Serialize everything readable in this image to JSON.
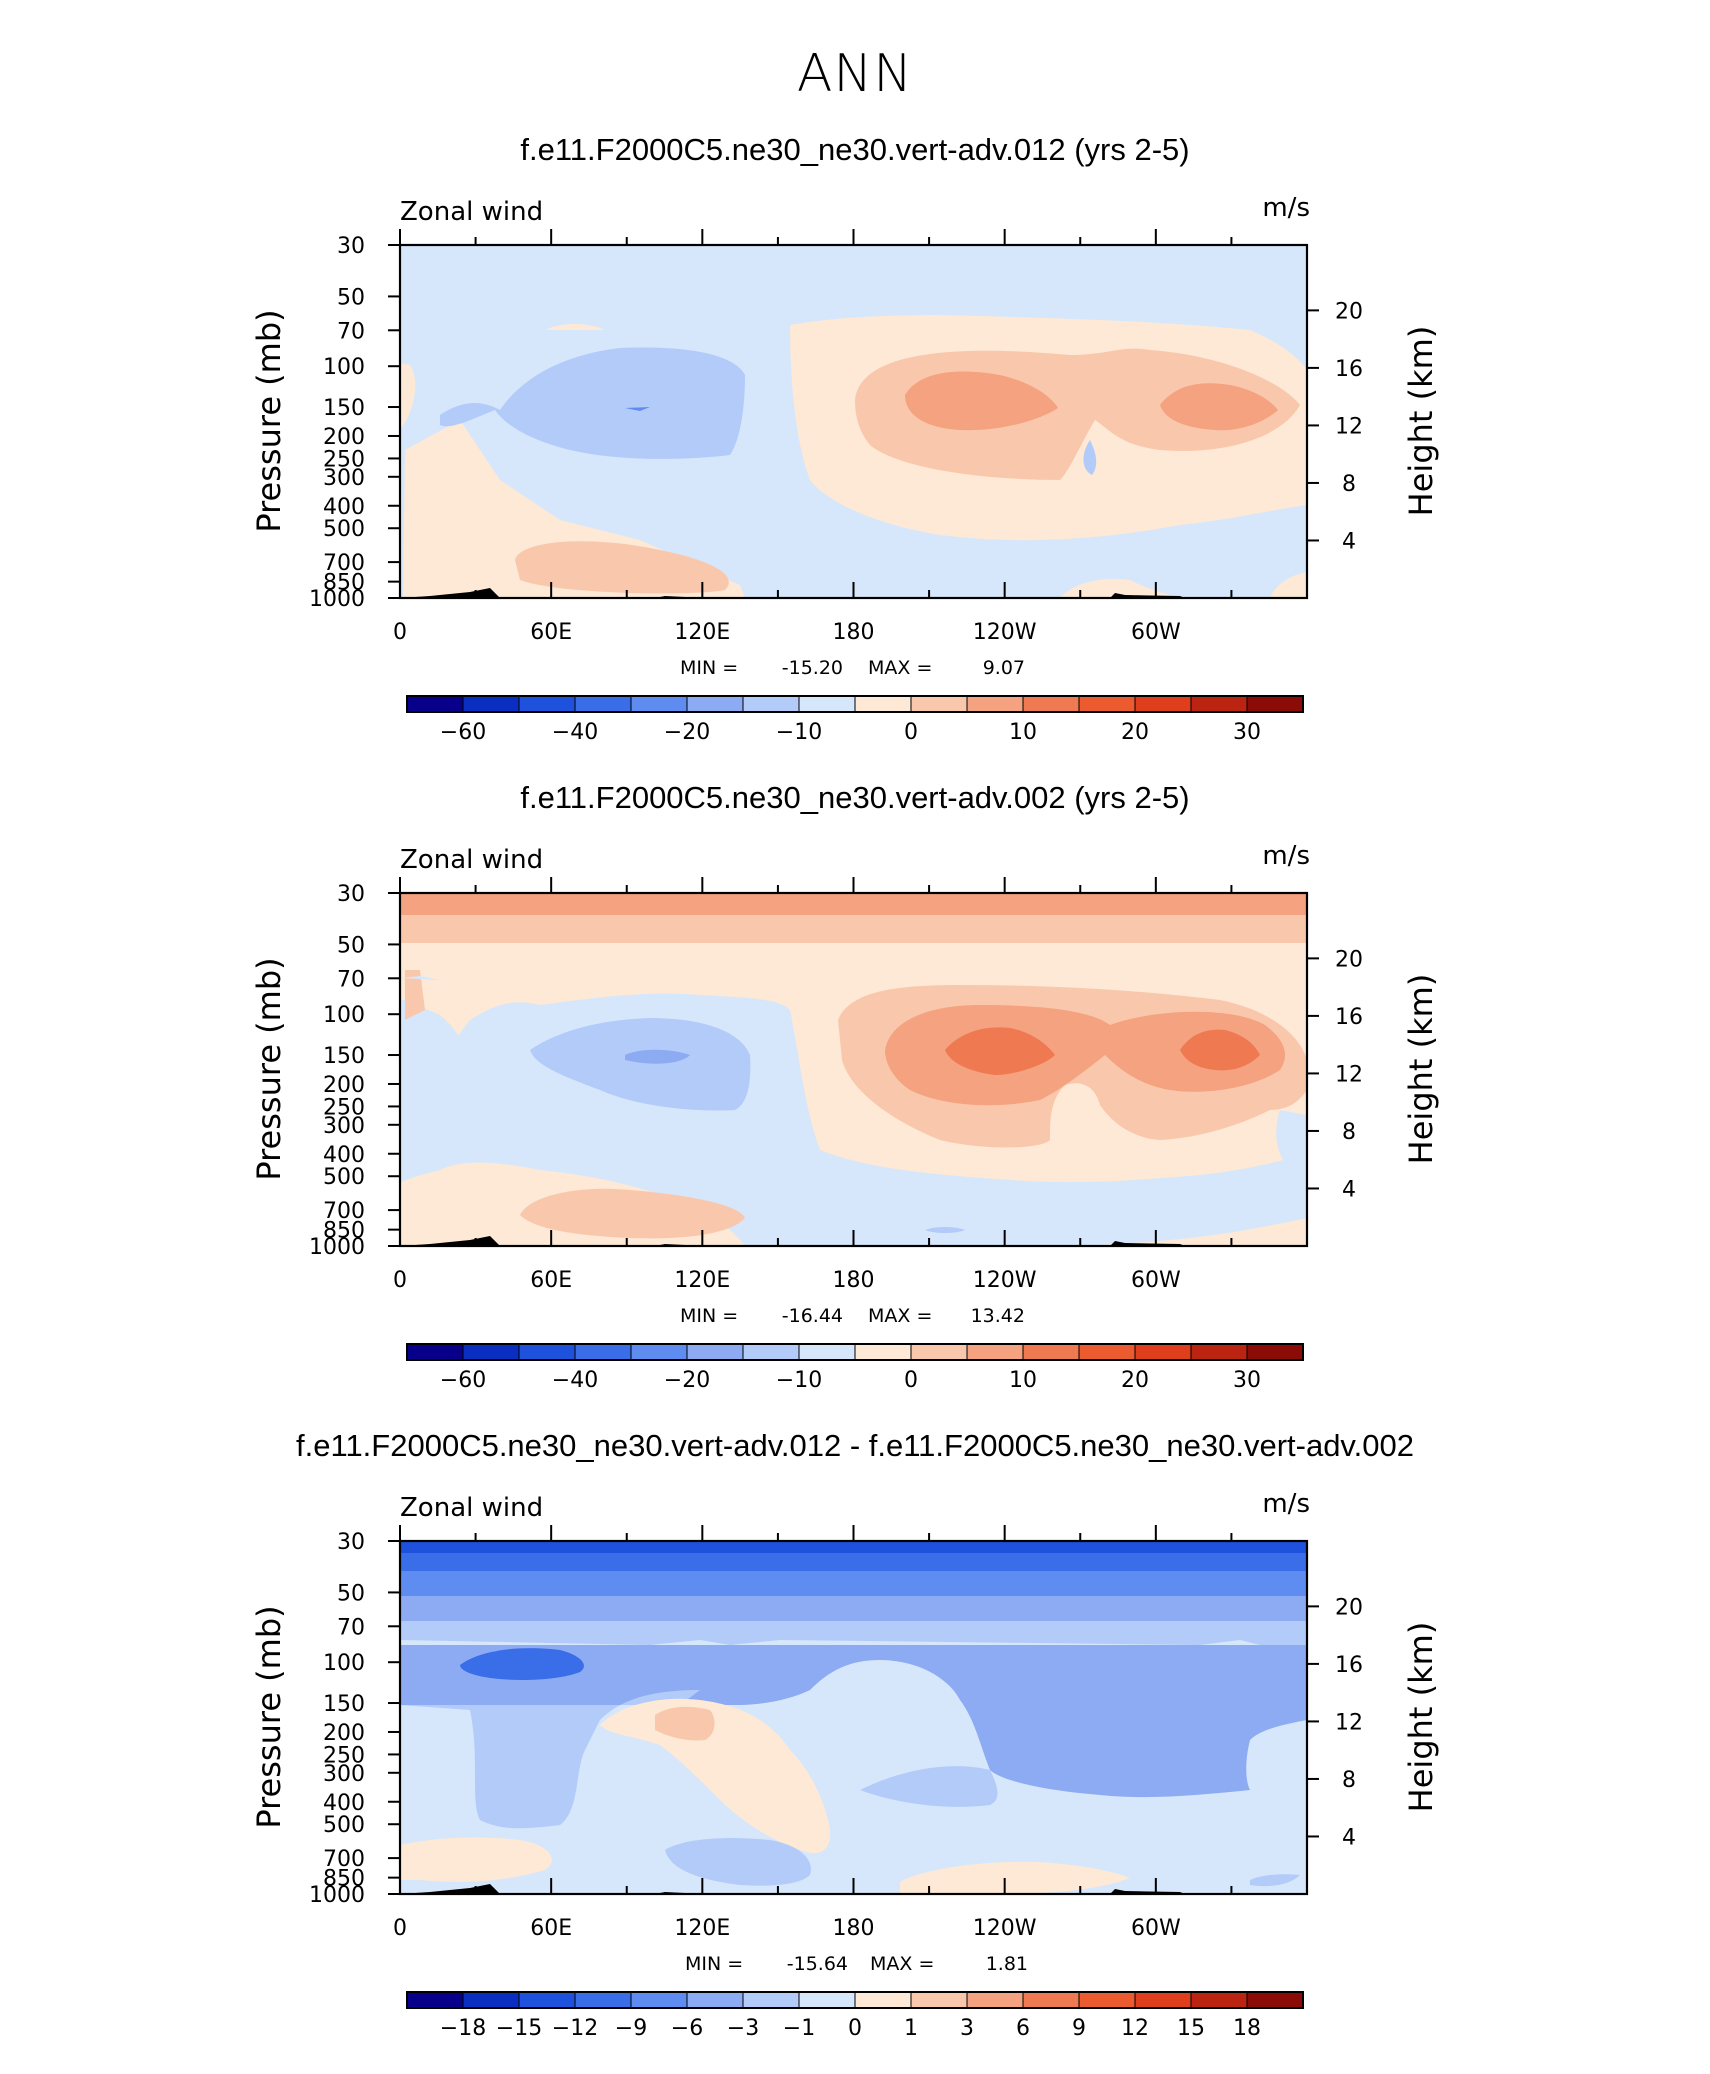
{
  "figure_title": "ANN",
  "chart_data": [
    {
      "type": "heatmap",
      "title": "f.e11.F2000C5.ne30_ne30.vert-adv.012 (yrs 2-5)",
      "variable": "Zonal wind",
      "units": "m/s",
      "ylabel": "Pressure (mb)",
      "y2label": "Height (km)",
      "x_ticks": [
        "0",
        "60E",
        "120E",
        "180",
        "120W",
        "60W"
      ],
      "y_ticks": [
        "30",
        "50",
        "70",
        "100",
        "150",
        "200",
        "250",
        "300",
        "400",
        "500",
        "700",
        "850",
        "1000"
      ],
      "y2_ticks": [
        "20",
        "16",
        "12",
        "8",
        "4"
      ],
      "stats": {
        "min_label": "MIN =",
        "min": "-15.20",
        "max_label": "MAX =",
        "max": "9.07"
      },
      "colorbar_labels": [
        "-60",
        "-40",
        "-20",
        "-10",
        "0",
        "10",
        "20",
        "30"
      ],
      "colorbar_colors": [
        "#08008a",
        "#0a2ec0",
        "#1e51dc",
        "#3a6ee8",
        "#5e8cf0",
        "#8dabf2",
        "#b3cbf9",
        "#d6e7fb",
        "#fde9d5",
        "#f9c8ac",
        "#f4a27f",
        "#ef7a52",
        "#ec5a2f",
        "#de3e1c",
        "#bb2410",
        "#8b0c06"
      ],
      "features": [
        {
          "name": "background",
          "level": "-5 to 0",
          "color": "#d6e7fb"
        },
        {
          "name": "blue-tropopause-core",
          "lon": 90,
          "pres": 150,
          "color": "#b3cbf9"
        },
        {
          "name": "eastern-pacific-jet",
          "lon": 200,
          "pres": 150,
          "color": "#f4a27f"
        },
        {
          "name": "atlantic-jet",
          "lon": 290,
          "pres": 150,
          "color": "#f4a27f"
        }
      ]
    },
    {
      "type": "heatmap",
      "title": "f.e11.F2000C5.ne30_ne30.vert-adv.002 (yrs 2-5)",
      "variable": "Zonal wind",
      "units": "m/s",
      "ylabel": "Pressure (mb)",
      "y2label": "Height (km)",
      "x_ticks": [
        "0",
        "60E",
        "120E",
        "180",
        "120W",
        "60W"
      ],
      "y_ticks": [
        "30",
        "50",
        "70",
        "100",
        "150",
        "200",
        "250",
        "300",
        "400",
        "500",
        "700",
        "850",
        "1000"
      ],
      "y2_ticks": [
        "20",
        "16",
        "12",
        "8",
        "4"
      ],
      "stats": {
        "min_label": "MIN =",
        "min": "-16.44",
        "max_label": "MAX =",
        "max": "13.42"
      },
      "colorbar_labels": [
        "-60",
        "-40",
        "-20",
        "-10",
        "0",
        "10",
        "20",
        "30"
      ],
      "colorbar_colors": [
        "#08008a",
        "#0a2ec0",
        "#1e51dc",
        "#3a6ee8",
        "#5e8cf0",
        "#8dabf2",
        "#b3cbf9",
        "#d6e7fb",
        "#fde9d5",
        "#f9c8ac",
        "#f4a27f",
        "#ef7a52",
        "#ec5a2f",
        "#de3e1c",
        "#bb2410",
        "#8b0c06"
      ],
      "features": [
        {
          "name": "upper-westerly-band",
          "pres": 30,
          "color": "#f4a27f"
        },
        {
          "name": "blue-tropopause-core",
          "lon": 110,
          "pres": 150,
          "color": "#8dabf2"
        },
        {
          "name": "eastern-pacific-jet",
          "lon": 200,
          "pres": 150,
          "color": "#ef7a52"
        },
        {
          "name": "atlantic-jet",
          "lon": 290,
          "pres": 150,
          "color": "#ef7a52"
        }
      ]
    },
    {
      "type": "heatmap",
      "title": "f.e11.F2000C5.ne30_ne30.vert-adv.012 - f.e11.F2000C5.ne30_ne30.vert-adv.002",
      "variable": "Zonal wind",
      "units": "m/s",
      "ylabel": "Pressure (mb)",
      "y2label": "Height (km)",
      "x_ticks": [
        "0",
        "60E",
        "120E",
        "180",
        "120W",
        "60W"
      ],
      "y_ticks": [
        "30",
        "50",
        "70",
        "100",
        "150",
        "200",
        "250",
        "300",
        "400",
        "500",
        "700",
        "850",
        "1000"
      ],
      "y2_ticks": [
        "20",
        "16",
        "12",
        "8",
        "4"
      ],
      "stats": {
        "min_label": "MIN =",
        "min": "-15.64",
        "max_label": "MAX =",
        "max": "1.81"
      },
      "colorbar_labels": [
        "-18",
        "-15",
        "-12",
        "-9",
        "-6",
        "-3",
        "-1",
        "0",
        "1",
        "3",
        "6",
        "9",
        "12",
        "15",
        "18"
      ],
      "colorbar_colors": [
        "#08008a",
        "#0a2ec0",
        "#1e51dc",
        "#3a6ee8",
        "#5e8cf0",
        "#8dabf2",
        "#b3cbf9",
        "#d6e7fb",
        "#fde9d5",
        "#f9c8ac",
        "#f4a27f",
        "#ef7a52",
        "#ec5a2f",
        "#de3e1c",
        "#bb2410",
        "#8b0c06"
      ],
      "features": [
        {
          "name": "strong-negative-top",
          "pres": 30,
          "color": "#1e51dc"
        },
        {
          "name": "negative-core",
          "lon": 50,
          "pres": 100,
          "color": "#3a6ee8"
        },
        {
          "name": "positive-tongue",
          "lon": 110,
          "pres": 200,
          "color": "#fde9d5"
        }
      ]
    }
  ]
}
